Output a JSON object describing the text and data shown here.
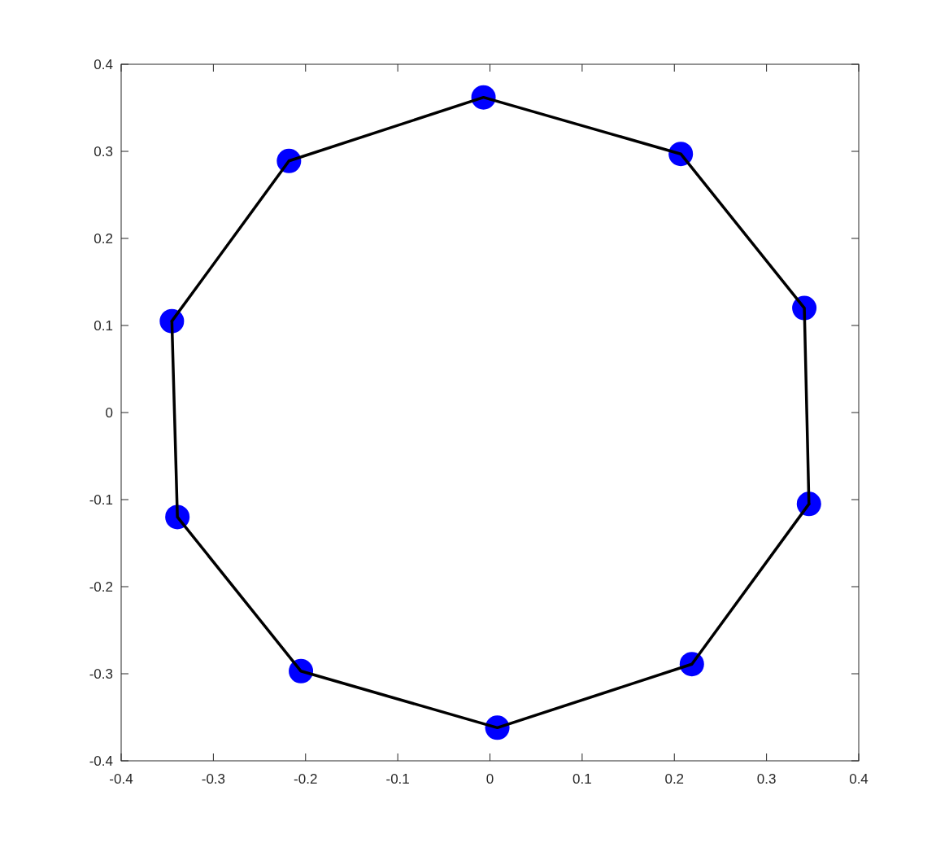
{
  "chart_data": {
    "type": "scatter",
    "xlim": [
      -0.4,
      0.4
    ],
    "ylim": [
      -0.4,
      0.4
    ],
    "xticks": [
      -0.4,
      -0.3,
      -0.2,
      -0.1,
      0,
      0.1,
      0.2,
      0.3,
      0.4
    ],
    "yticks": [
      -0.4,
      -0.3,
      -0.2,
      -0.1,
      0,
      0.1,
      0.2,
      0.3,
      0.4
    ],
    "grid": false,
    "series": [
      {
        "type": "line",
        "color": "#000000",
        "marker": "none",
        "line_style": "solid",
        "x": [
          -0.345,
          -0.218,
          -0.007,
          0.207,
          0.341,
          0.346
        ],
        "values": [
          0.105,
          0.289,
          0.362,
          0.297,
          0.12,
          -0.105
        ]
      },
      {
        "type": "line",
        "color": "#000000",
        "marker": "none",
        "line_style": "solid",
        "x": [
          -0.345,
          -0.339,
          -0.205,
          0.008,
          0.219,
          0.346
        ],
        "values": [
          0.105,
          -0.12,
          -0.297,
          -0.362,
          -0.289,
          -0.105
        ]
      },
      {
        "color": "#0000ff",
        "marker": "circle",
        "x": [
          -0.007,
          0.207,
          0.341,
          0.346,
          0.219,
          0.008,
          -0.205,
          -0.339,
          -0.345,
          -0.218
        ],
        "values": [
          0.362,
          0.297,
          0.12,
          -0.105,
          -0.289,
          -0.362,
          -0.297,
          -0.12,
          0.105,
          0.289
        ]
      }
    ]
  }
}
